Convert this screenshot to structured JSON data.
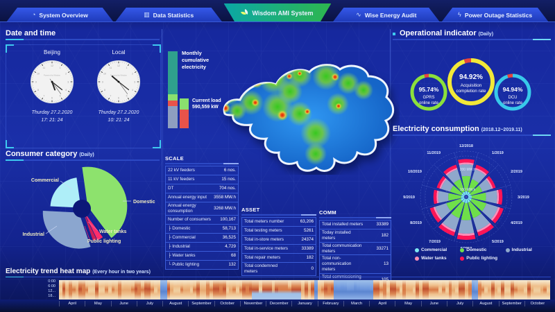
{
  "nav": {
    "tabs": [
      {
        "label": "System Overview",
        "icon": "gauge-icon",
        "glyph": "◔"
      },
      {
        "label": "Data Statistics",
        "icon": "bar-chart-icon",
        "glyph": "▥"
      },
      {
        "label": "Wisdom AMI System",
        "icon": "leaf-icon",
        "glyph": "",
        "active": true
      },
      {
        "label": "Wise Energy Audit",
        "icon": "wave-icon",
        "glyph": "∿"
      },
      {
        "label": "Power Outage Statistics",
        "icon": "lightning-icon",
        "glyph": "ϟ"
      }
    ]
  },
  "datetime_panel": {
    "title": "Date and time",
    "clocks": [
      {
        "label": "Beijing",
        "watermark": "Powered by Wisdom",
        "date": "Thurday 27.2.2020",
        "time": "17: 21: 24",
        "hour": 17,
        "minute": 21,
        "second": 24
      },
      {
        "label": "Local",
        "watermark": "Powered by Wisdom",
        "date": "Thurday 27.2.2020",
        "time": "10: 21: 24",
        "hour": 10,
        "minute": 21,
        "second": 24
      }
    ]
  },
  "consumer_panel": {
    "title": "Consumer category",
    "subtitle": "(Daily)"
  },
  "center_panel": {
    "monthly_bar_label": "Monthly cumulative electricity",
    "current_load_label": "Current load",
    "current_load_value": "590,559 kW"
  },
  "scale_table": {
    "title": "SCALE",
    "rows": [
      [
        "22 kV feeders",
        "6 nos."
      ],
      [
        "11 kV feeders",
        "15 nos."
      ],
      [
        "DT",
        "704 nos."
      ],
      [
        "Annual energy input",
        "3558 MW.h"
      ],
      [
        "Annual energy consumption",
        "3268 MW.h"
      ],
      [
        "Number of consumers",
        "100,167"
      ],
      [
        "├ Domestic",
        "58,713"
      ],
      [
        "├ Commercial",
        "36,525"
      ],
      [
        "├ Industrial",
        "4,729"
      ],
      [
        "├ Water tanks",
        "68"
      ],
      [
        "└ Public lighting",
        "132"
      ]
    ]
  },
  "asset_table": {
    "title": "ASSET",
    "rows": [
      [
        "Total meters number",
        "63,206"
      ],
      [
        "Total testing meters",
        "5261"
      ],
      [
        "Total in-store meters",
        "24374"
      ],
      [
        "Total in-service meters",
        "33389"
      ],
      [
        "Total repair meters",
        "182"
      ],
      [
        "Total condemned meters",
        "0"
      ]
    ]
  },
  "comm_table": {
    "title": "COMM",
    "rows": [
      [
        "Total installed meters",
        "33389"
      ],
      [
        "Today installed meters",
        "182"
      ],
      [
        "Total communication meters",
        "33271"
      ],
      [
        "Total non-communication meters",
        "13"
      ],
      [
        "Total commissioning meters",
        "105"
      ]
    ]
  },
  "operational_panel": {
    "title": "Operational indicator",
    "subtitle": "(Daily)",
    "gauges": [
      {
        "value": "95.74%",
        "percent": 95.74,
        "line1": "GPRS",
        "line2": "online rate",
        "color": "#8ce03c"
      },
      {
        "value": "94.92%",
        "percent": 94.92,
        "line1": "Acquisition",
        "line2": "completion rate",
        "color": "#f2e838"
      },
      {
        "value": "94.94%",
        "percent": 94.94,
        "line1": "DCU",
        "line2": "online rate",
        "color": "#38c9ea"
      }
    ]
  },
  "consumption_panel": {
    "title": "Electricity consumption",
    "subtitle": "(2018.12~2019.11)",
    "legend": [
      {
        "label": "Commercial",
        "color": "#7de9f2"
      },
      {
        "label": "Domestic",
        "color": "#6fdf4a"
      },
      {
        "label": "Industrial",
        "color": "#8fa8cc"
      },
      {
        "label": "Water tanks",
        "color": "#ff8fb8"
      },
      {
        "label": "Public lighting",
        "color": "#ff1456"
      }
    ]
  },
  "heatmap_panel": {
    "title": "Electricity trend heat map",
    "subtitle": "(Every hour in two years)",
    "y_labels": [
      "0:00",
      "6:00",
      "12...",
      "18..."
    ],
    "months": [
      "April",
      "May",
      "June",
      "July",
      "August",
      "September",
      "October",
      "November",
      "December",
      "January",
      "February",
      "March",
      "April",
      "May",
      "June",
      "July",
      "August",
      "September",
      "October"
    ]
  },
  "chart_data": [
    {
      "id": "consumer_category_pie",
      "type": "pie",
      "title": "Consumer category (Daily)",
      "labels": [
        "Domestic",
        "Water tanks",
        "Public lighting",
        "Industrial",
        "Commercial"
      ],
      "values": [
        42,
        3,
        2,
        31,
        22
      ],
      "unit": "% of daily consumption (estimated from arc angles)",
      "colors": [
        "#8de26d",
        "#ff2d6b",
        "#d01e55",
        "#8ba6cf",
        "#aeeef8"
      ]
    },
    {
      "id": "monthly_cumulative_electricity_bar",
      "type": "bar",
      "stacked": true,
      "label": "Monthly cumulative electricity",
      "segments": [
        {
          "name": "segment-1",
          "fraction": 0.56,
          "color": "#2fa08d"
        },
        {
          "name": "segment-2",
          "fraction": 0.08,
          "color": "#8ae06e"
        },
        {
          "name": "segment-3",
          "fraction": 0.07,
          "color": "#e8534a"
        },
        {
          "name": "segment-4",
          "fraction": 0.29,
          "color": "#8e9fc0"
        }
      ]
    },
    {
      "id": "current_load_bar",
      "type": "bar",
      "stacked": true,
      "label": "Current load",
      "value": "590,559 kW",
      "segments": [
        {
          "name": "segment-1",
          "fraction": 0.38,
          "color": "#8ae06e"
        },
        {
          "name": "segment-2",
          "fraction": 0.62,
          "color": "#e8534a"
        }
      ]
    },
    {
      "id": "operational_gauges",
      "type": "gauge",
      "remainder_color": "#e8453c",
      "items": [
        {
          "label": "GPRS online rate",
          "value": 95.74,
          "color": "#8ce03c"
        },
        {
          "label": "Acquisition completion rate",
          "value": 94.92,
          "color": "#f2e838"
        },
        {
          "label": "DCU online rate",
          "value": 94.94,
          "color": "#38c9ea"
        }
      ]
    },
    {
      "id": "electricity_consumption_rose",
      "type": "rose",
      "title": "Electricity consumption (2018.12~2019.11)",
      "unit": "MW.h",
      "radial_ticks": [
        "100 MW.h",
        "200 MW.h"
      ],
      "categories": [
        "12/2018",
        "1/2019",
        "2/2019",
        "3/2019",
        "4/2019",
        "5/2019",
        "6/2019",
        "7/2019",
        "8/2019",
        "9/2019",
        "10/2019",
        "11/2019"
      ],
      "series": [
        {
          "name": "Commercial",
          "color": "#7de9f2",
          "values": [
            19,
            17,
            15,
            18,
            19,
            20,
            21,
            20,
            19,
            16,
            15,
            17
          ]
        },
        {
          "name": "Domestic",
          "color": "#6fdf4a",
          "values": [
            78,
            69,
            63,
            74,
            80,
            84,
            88,
            84,
            78,
            67,
            63,
            69
          ]
        },
        {
          "name": "Industrial",
          "color": "#8fa8cc",
          "values": [
            61,
            54,
            50,
            58,
            63,
            66,
            69,
            66,
            61,
            53,
            50,
            54
          ]
        },
        {
          "name": "Water tanks",
          "color": "#ff8fb8",
          "values": [
            9,
            8,
            8,
            9,
            10,
            10,
            11,
            10,
            9,
            8,
            8,
            8
          ]
        },
        {
          "name": "Public lighting",
          "color": "#ff1456",
          "values": [
            18,
            17,
            15,
            18,
            19,
            20,
            21,
            20,
            19,
            16,
            15,
            17
          ]
        }
      ]
    },
    {
      "id": "electricity_trend_heatmap",
      "type": "heatmap",
      "x_months": [
        "April",
        "May",
        "June",
        "July",
        "August",
        "September",
        "October",
        "November",
        "December",
        "January",
        "February",
        "March",
        "April",
        "May",
        "June",
        "July",
        "August",
        "September",
        "October"
      ],
      "y_hours": [
        "0:00",
        "6:00",
        "12:00",
        "18:00"
      ],
      "cool_bands_fraction": [
        [
          0.205,
          0.215
        ],
        [
          0.515,
          0.525
        ],
        [
          0.555,
          0.635
        ],
        [
          0.84,
          0.85
        ]
      ]
    }
  ]
}
